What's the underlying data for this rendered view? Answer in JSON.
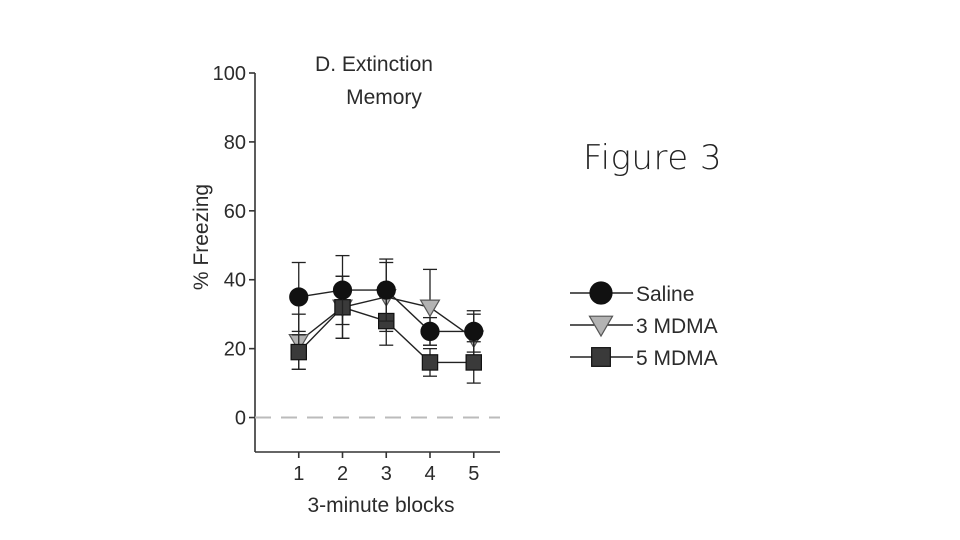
{
  "slide": {
    "figure_label": "Figure 3"
  },
  "chart_data": {
    "type": "line",
    "title": "D. Extinction Memory",
    "title_lines": [
      "D. Extinction",
      "Memory"
    ],
    "xlabel": "3-minute blocks",
    "ylabel": "% Freezing",
    "x": [
      1,
      2,
      3,
      4,
      5
    ],
    "xlim": [
      0,
      5.6
    ],
    "ylim": [
      -10,
      100
    ],
    "yticks": [
      0,
      20,
      40,
      60,
      80,
      100
    ],
    "reference_line": {
      "y": 0,
      "style": "dashed",
      "color": "#bbbbbb"
    },
    "legend_position": "right",
    "series": [
      {
        "name": "Saline",
        "marker": "circle",
        "color": "#111111",
        "values": [
          35,
          37,
          37,
          25,
          25
        ],
        "error": [
          10,
          10,
          9,
          4,
          6
        ]
      },
      {
        "name": "3 MDMA",
        "marker": "triangle-down",
        "color": "#b3b3b3",
        "values": [
          22,
          32,
          35,
          32,
          23
        ],
        "error": [
          8,
          9,
          10,
          11,
          7
        ]
      },
      {
        "name": "5 MDMA",
        "marker": "square",
        "color": "#3a3a3a",
        "values": [
          19,
          32,
          28,
          16,
          16
        ],
        "error": [
          5,
          9,
          7,
          4,
          6
        ]
      }
    ]
  }
}
